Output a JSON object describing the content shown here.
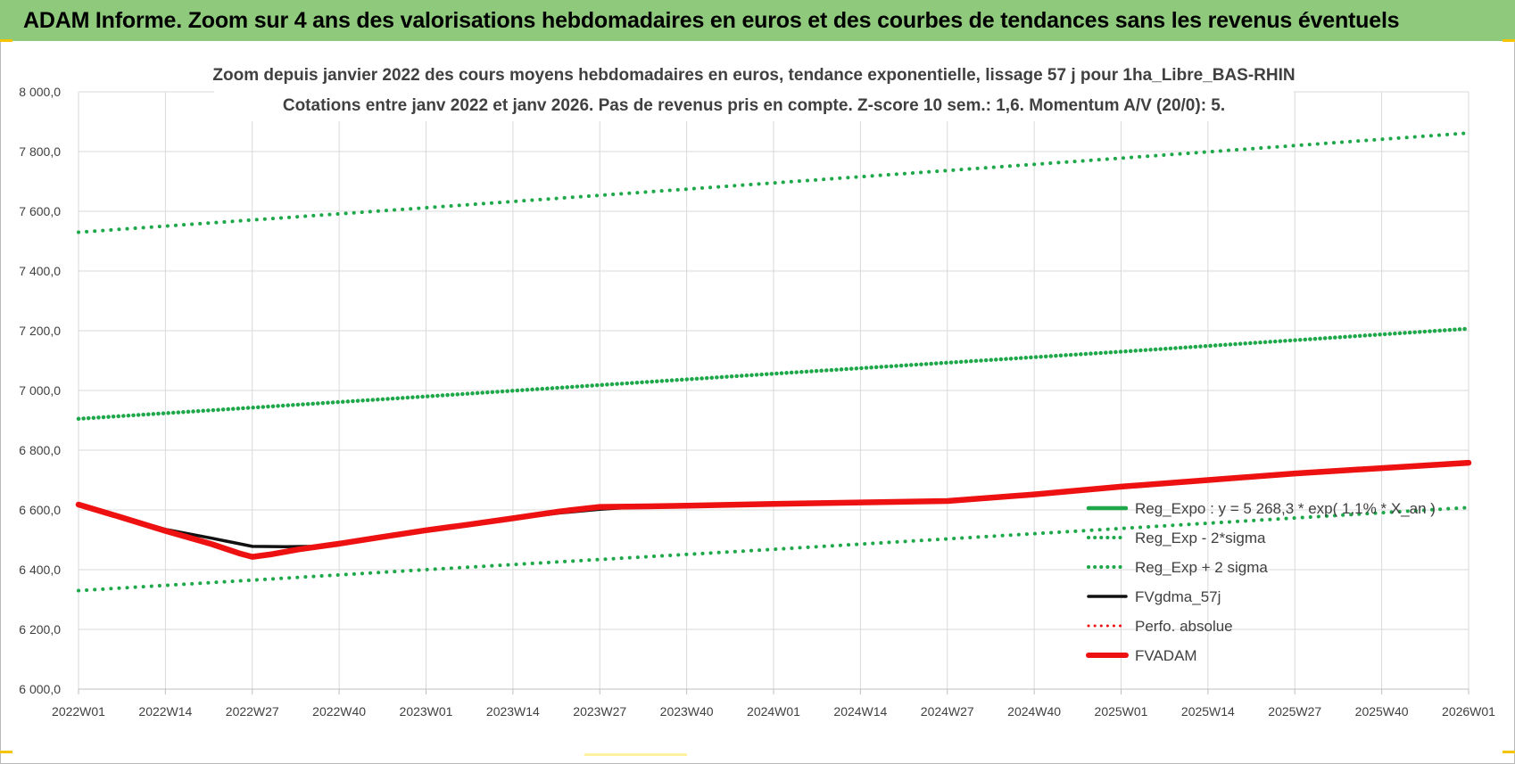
{
  "banner": {
    "title": "ADAM Informe. Zoom sur 4 ans des valorisations hebdomadaires en euros et des courbes de tendances sans les revenus éventuels"
  },
  "colors": {
    "banner_bg": "#8ec97c",
    "green": "#1ea84a",
    "red": "#ee1111",
    "black": "#111111",
    "gold_accent": "#f5c400"
  },
  "chart_data": {
    "type": "line",
    "title_line1": "Zoom depuis janvier 2022 des cours moyens hebdomadaires en euros, tendance exponentielle, lissage 57 j pour 1ha_Libre_BAS-RHIN",
    "title_line2": "Cotations entre janv 2022 et janv 2026. Pas de revenus pris en compte. Z-score 10 sem.: 1,6. Momentum A/V (20/0): 5.",
    "xlabel": "",
    "ylabel": "",
    "ylim": [
      6000,
      8000
    ],
    "yticks": [
      8000,
      7800,
      7600,
      7400,
      7200,
      7000,
      6800,
      6600,
      6400,
      6200,
      6000
    ],
    "ytick_labels": [
      "8 000,0",
      "7 800,0",
      "7 600,0",
      "7 400,0",
      "7 200,0",
      "7 000,0",
      "6 800,0",
      "6 600,0",
      "6 400,0",
      "6 200,0",
      "6 000,0"
    ],
    "xlim": [
      0,
      208
    ],
    "xtick_labels": [
      "2022W01",
      "2022W14",
      "2022W27",
      "2022W40",
      "2023W01",
      "2023W14",
      "2023W27",
      "2023W40",
      "2024W01",
      "2024W14",
      "2024W27",
      "2024W40",
      "2025W01",
      "2025W14",
      "2025W27",
      "2025W40",
      "2026W01"
    ],
    "xtick_weeks": [
      0,
      13,
      26,
      39,
      52,
      65,
      78,
      91,
      104,
      117,
      130,
      143,
      156,
      169,
      182,
      195,
      208
    ],
    "grid": true,
    "legend_position": "bottom-right",
    "series": [
      {
        "name": "Reg_Expo : y = 5 268,3 * exp( 1,1% * X_an )",
        "style": "solid",
        "color": "#1ea84a",
        "x": [
          0,
          52,
          104,
          156,
          208
        ],
        "values": [
          6905,
          6980,
          7056,
          7130,
          7207
        ]
      },
      {
        "name": "Reg_Exp - 2*sigma",
        "style": "dotted",
        "color": "#1ea84a",
        "x": [
          0,
          52,
          104,
          156,
          208
        ],
        "values": [
          6330,
          6400,
          6468,
          6538,
          6608
        ]
      },
      {
        "name": "Reg_Exp + 2 sigma",
        "style": "dotted",
        "color": "#1ea84a",
        "x": [
          0,
          52,
          104,
          156,
          208
        ],
        "values": [
          7530,
          7612,
          7695,
          7778,
          7862
        ]
      },
      {
        "name": "FVgdma_57j",
        "style": "solid",
        "color": "#111111",
        "x": [
          0,
          6,
          13,
          20,
          26,
          31,
          35,
          39,
          45,
          52,
          65,
          72,
          78,
          85,
          91,
          104,
          130,
          143,
          156,
          182,
          208
        ],
        "values": [
          6618,
          6580,
          6535,
          6505,
          6478,
          6477,
          6478,
          6490,
          6505,
          6530,
          6570,
          6590,
          6602,
          6612,
          6614,
          6620,
          6630,
          6652,
          6678,
          6722,
          6758
        ]
      },
      {
        "name": "Perfo. absolue",
        "style": "dotted",
        "color": "#ee1111",
        "x": [],
        "values": []
      },
      {
        "name": "FVADAM",
        "style": "solid",
        "color": "#ee1111",
        "x": [
          0,
          6,
          13,
          20,
          24,
          26,
          29,
          33,
          39,
          45,
          52,
          58,
          65,
          72,
          78,
          85,
          91,
          104,
          117,
          130,
          143,
          156,
          169,
          182,
          195,
          208
        ],
        "values": [
          6618,
          6578,
          6530,
          6485,
          6455,
          6443,
          6452,
          6468,
          6487,
          6508,
          6532,
          6550,
          6572,
          6595,
          6610,
          6612,
          6614,
          6620,
          6625,
          6630,
          6652,
          6678,
          6700,
          6722,
          6740,
          6758
        ]
      }
    ]
  }
}
